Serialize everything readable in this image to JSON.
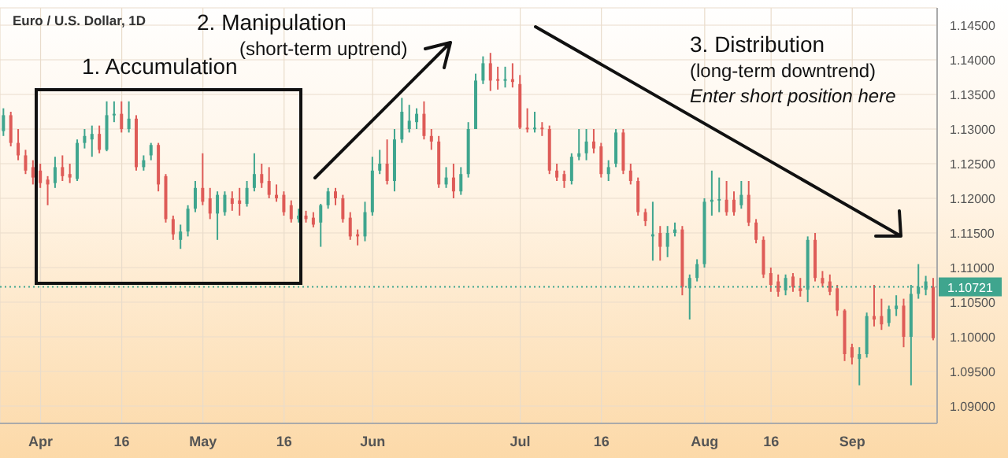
{
  "chart_data": {
    "type": "candlestick",
    "title": "Euro / U.S. Dollar, 1D",
    "categories": [
      null,
      null,
      null,
      null,
      null,
      "Apr",
      null,
      null,
      null,
      null,
      null,
      null,
      null,
      null,
      null,
      null,
      "16",
      null,
      null,
      null,
      null,
      null,
      null,
      null,
      null,
      null,
      null,
      "May",
      null,
      null,
      null,
      null,
      null,
      null,
      null,
      null,
      null,
      null,
      "16",
      null,
      null,
      null,
      null,
      null,
      null,
      null,
      null,
      null,
      null,
      null,
      "Jun",
      null,
      null,
      null,
      null,
      null,
      null,
      null,
      null,
      null,
      null,
      null,
      null,
      null,
      null,
      null,
      null,
      null,
      null,
      null,
      "Jul",
      null,
      null,
      null,
      null,
      null,
      null,
      null,
      null,
      null,
      null,
      "16",
      null,
      null,
      null,
      null,
      null,
      null,
      null,
      null,
      null,
      null,
      null,
      null,
      null,
      "Aug",
      null,
      null,
      null,
      null,
      null,
      null,
      null,
      null,
      "16",
      null,
      null,
      null,
      null,
      null,
      null,
      null,
      null,
      null,
      null,
      "Sep",
      null,
      null,
      null,
      null,
      null,
      null,
      null,
      null,
      null,
      null,
      null
    ],
    "ohlc": [
      [
        1.1297,
        1.133,
        1.129,
        1.132
      ],
      [
        1.132,
        1.1325,
        1.1275,
        1.128
      ],
      [
        1.128,
        1.13,
        1.1255,
        1.1262
      ],
      [
        1.1262,
        1.127,
        1.1235,
        1.124
      ],
      [
        1.1245,
        1.1255,
        1.122,
        1.123
      ],
      [
        1.124,
        1.125,
        1.1215,
        1.1222
      ],
      [
        1.1227,
        1.1232,
        1.119,
        1.122
      ],
      [
        1.1222,
        1.126,
        1.1215,
        1.1245
      ],
      [
        1.1245,
        1.1262,
        1.1225,
        1.1232
      ],
      [
        1.1235,
        1.125,
        1.1222,
        1.123
      ],
      [
        1.1228,
        1.1285,
        1.1225,
        1.128
      ],
      [
        1.128,
        1.13,
        1.1272,
        1.129
      ],
      [
        1.1285,
        1.1305,
        1.126,
        1.1293
      ],
      [
        1.1293,
        1.1305,
        1.1265,
        1.127
      ],
      [
        1.127,
        1.134,
        1.1268,
        1.132
      ],
      [
        1.132,
        1.134,
        1.131,
        1.1322
      ],
      [
        1.1322,
        1.134,
        1.1295,
        1.13
      ],
      [
        1.13,
        1.134,
        1.1295,
        1.1315
      ],
      [
        1.1315,
        1.132,
        1.124,
        1.1245
      ],
      [
        1.1245,
        1.1262,
        1.124,
        1.1255
      ],
      [
        1.1262,
        1.128,
        1.1255,
        1.1277
      ],
      [
        1.1277,
        1.128,
        1.121,
        1.122
      ],
      [
        1.1232,
        1.1235,
        1.1165,
        1.117
      ],
      [
        1.117,
        1.1175,
        1.114,
        1.1148
      ],
      [
        1.114,
        1.1162,
        1.1127,
        1.1152
      ],
      [
        1.1152,
        1.119,
        1.1145,
        1.1185
      ],
      [
        1.1185,
        1.1225,
        1.118,
        1.1215
      ],
      [
        1.1215,
        1.1265,
        1.119,
        1.1195
      ],
      [
        1.12,
        1.1215,
        1.117,
        1.1178
      ],
      [
        1.1178,
        1.121,
        1.114,
        1.1205
      ],
      [
        1.118,
        1.121,
        1.1175,
        1.1205
      ],
      [
        1.12,
        1.121,
        1.1182,
        1.1192
      ],
      [
        1.1197,
        1.1215,
        1.1175,
        1.1192
      ],
      [
        1.1192,
        1.1225,
        1.1188,
        1.1215
      ],
      [
        1.1215,
        1.1265,
        1.121,
        1.1235
      ],
      [
        1.1235,
        1.125,
        1.1215,
        1.1222
      ],
      [
        1.1225,
        1.1245,
        1.12,
        1.1205
      ],
      [
        1.1205,
        1.122,
        1.1195,
        1.12
      ],
      [
        1.1205,
        1.121,
        1.1175,
        1.118
      ],
      [
        1.119,
        1.1197,
        1.1165,
        1.117
      ],
      [
        1.117,
        1.1185,
        1.1165,
        1.1175
      ],
      [
        1.1175,
        1.1182,
        1.1165,
        1.117
      ],
      [
        1.1172,
        1.118,
        1.1158,
        1.1162
      ],
      [
        1.1165,
        1.1192,
        1.113,
        1.119
      ],
      [
        1.119,
        1.1215,
        1.1185,
        1.121
      ],
      [
        1.121,
        1.1215,
        1.119,
        1.12
      ],
      [
        1.12,
        1.1205,
        1.1165,
        1.117
      ],
      [
        1.1172,
        1.118,
        1.114,
        1.1145
      ],
      [
        1.1148,
        1.1155,
        1.1132,
        1.1145
      ],
      [
        1.1145,
        1.1195,
        1.1138,
        1.118
      ],
      [
        1.118,
        1.126,
        1.1175,
        1.124
      ],
      [
        1.124,
        1.127,
        1.1235,
        1.125
      ],
      [
        1.125,
        1.1285,
        1.122,
        1.1225
      ],
      [
        1.1225,
        1.13,
        1.121,
        1.1285
      ],
      [
        1.1285,
        1.1345,
        1.128,
        1.1325
      ],
      [
        1.13,
        1.1335,
        1.1295,
        1.1312
      ],
      [
        1.131,
        1.133,
        1.13,
        1.1322
      ],
      [
        1.1322,
        1.134,
        1.1285,
        1.129
      ],
      [
        1.129,
        1.13,
        1.127,
        1.1282
      ],
      [
        1.1282,
        1.129,
        1.1215,
        1.122
      ],
      [
        1.122,
        1.1245,
        1.1215,
        1.123
      ],
      [
        1.123,
        1.125,
        1.12,
        1.121
      ],
      [
        1.121,
        1.1245,
        1.1205,
        1.1235
      ],
      [
        1.1235,
        1.131,
        1.123,
        1.13
      ],
      [
        1.13,
        1.138,
        1.13,
        1.137
      ],
      [
        1.137,
        1.1405,
        1.1365,
        1.1395
      ],
      [
        1.1395,
        1.141,
        1.1355,
        1.137
      ],
      [
        1.1372,
        1.139,
        1.1357,
        1.137
      ],
      [
        1.137,
        1.139,
        1.136,
        1.1372
      ],
      [
        1.1372,
        1.1395,
        1.136,
        1.1368
      ],
      [
        1.1365,
        1.1378,
        1.13,
        1.1302
      ],
      [
        1.1302,
        1.133,
        1.1295,
        1.13
      ],
      [
        1.13,
        1.1325,
        1.1295,
        1.1302
      ],
      [
        1.1302,
        1.131,
        1.129,
        1.13
      ],
      [
        1.13,
        1.1305,
        1.1235,
        1.124
      ],
      [
        1.124,
        1.125,
        1.1225,
        1.123
      ],
      [
        1.1235,
        1.124,
        1.1215,
        1.1225
      ],
      [
        1.1225,
        1.1265,
        1.122,
        1.126
      ],
      [
        1.126,
        1.13,
        1.1255,
        1.1265
      ],
      [
        1.1265,
        1.13,
        1.1255,
        1.1282
      ],
      [
        1.1282,
        1.13,
        1.1265,
        1.1272
      ],
      [
        1.1275,
        1.128,
        1.123,
        1.1235
      ],
      [
        1.1235,
        1.1255,
        1.1225,
        1.1245
      ],
      [
        1.125,
        1.13,
        1.1245,
        1.1295
      ],
      [
        1.1295,
        1.13,
        1.1235,
        1.124
      ],
      [
        1.124,
        1.125,
        1.122,
        1.1225
      ],
      [
        1.1225,
        1.123,
        1.1175,
        1.118
      ],
      [
        1.118,
        1.1185,
        1.116,
        1.1167
      ],
      [
        1.1145,
        1.1195,
        1.111,
        1.1148
      ],
      [
        1.115,
        1.116,
        1.111,
        1.113
      ],
      [
        1.113,
        1.116,
        1.1115,
        1.115
      ],
      [
        1.115,
        1.1165,
        1.1145,
        1.1155
      ],
      [
        1.1155,
        1.116,
        1.106,
        1.1072
      ],
      [
        1.107,
        1.109,
        1.1025,
        1.1085
      ],
      [
        1.1085,
        1.1112,
        1.108,
        1.1105
      ],
      [
        1.1105,
        1.12,
        1.11,
        1.1195
      ],
      [
        1.1195,
        1.124,
        1.1175,
        1.1198
      ],
      [
        1.1198,
        1.123,
        1.118,
        1.1199
      ],
      [
        1.1198,
        1.1225,
        1.1175,
        1.118
      ],
      [
        1.1198,
        1.121,
        1.1175,
        1.118
      ],
      [
        1.119,
        1.1225,
        1.1185,
        1.1205
      ],
      [
        1.1205,
        1.1225,
        1.116,
        1.1165
      ],
      [
        1.1165,
        1.117,
        1.1135,
        1.114
      ],
      [
        1.114,
        1.1145,
        1.1085,
        1.109
      ],
      [
        1.1092,
        1.11,
        1.1065,
        1.1075
      ],
      [
        1.108,
        1.109,
        1.1058,
        1.1065
      ],
      [
        1.1067,
        1.109,
        1.106,
        1.1085
      ],
      [
        1.1087,
        1.1092,
        1.1065,
        1.1072
      ],
      [
        1.107,
        1.1085,
        1.1058,
        1.1066
      ],
      [
        1.1068,
        1.1145,
        1.105,
        1.114
      ],
      [
        1.114,
        1.115,
        1.108,
        1.1085
      ],
      [
        1.1085,
        1.1095,
        1.1072,
        1.1077
      ],
      [
        1.108,
        1.109,
        1.106,
        1.1065
      ],
      [
        1.107,
        1.1075,
        1.103,
        1.1038
      ],
      [
        1.1038,
        1.104,
        1.0965,
        1.0975
      ],
      [
        1.0985,
        1.099,
        1.096,
        1.097
      ],
      [
        1.0968,
        1.0985,
        1.093,
        1.0975
      ],
      [
        1.0975,
        1.1035,
        1.097,
        1.103
      ],
      [
        1.103,
        1.1075,
        1.1015,
        1.1025
      ],
      [
        1.103,
        1.1055,
        1.101,
        1.1018
      ],
      [
        1.102,
        1.1045,
        1.1015,
        1.104
      ],
      [
        1.104,
        1.106,
        1.103,
        1.1045
      ],
      [
        1.1045,
        1.1055,
        1.0985,
        1.1
      ],
      [
        1.1,
        1.1075,
        1.093,
        1.1062
      ],
      [
        1.1062,
        1.1105,
        1.1055,
        1.1072
      ],
      [
        1.1068,
        1.1088,
        1.106,
        1.108
      ],
      [
        1.1072,
        1.1085,
        1.0995,
        1.0998
      ]
    ],
    "colors": [
      "#3fa58e",
      "#de5b57",
      "#de5b57",
      "#de5b57",
      "#de5b57",
      "#de5b57",
      "#de5b57",
      "#3fa58e",
      "#de5b57",
      "#de5b57",
      "#3fa58e",
      "#3fa58e",
      "#3fa58e",
      "#de5b57",
      "#3fa58e",
      "#3fa58e",
      "#de5b57",
      "#3fa58e",
      "#de5b57",
      "#3fa58e",
      "#3fa58e",
      "#de5b57",
      "#de5b57",
      "#de5b57",
      "#3fa58e",
      "#3fa58e",
      "#3fa58e",
      "#de5b57",
      "#de5b57",
      "#3fa58e",
      "#3fa58e",
      "#de5b57",
      "#de5b57",
      "#3fa58e",
      "#3fa58e",
      "#de5b57",
      "#de5b57",
      "#de5b57",
      "#de5b57",
      "#de5b57",
      "#3fa58e",
      "#de5b57",
      "#de5b57",
      "#3fa58e",
      "#3fa58e",
      "#de5b57",
      "#de5b57",
      "#de5b57",
      "#de5b57",
      "#3fa58e",
      "#3fa58e",
      "#3fa58e",
      "#de5b57",
      "#3fa58e",
      "#3fa58e",
      "#3fa58e",
      "#3fa58e",
      "#de5b57",
      "#de5b57",
      "#de5b57",
      "#3fa58e",
      "#de5b57",
      "#3fa58e",
      "#3fa58e",
      "#3fa58e",
      "#3fa58e",
      "#de5b57",
      "#de5b57",
      "#3fa58e",
      "#de5b57",
      "#de5b57",
      "#de5b57",
      "#3fa58e",
      "#de5b57",
      "#de5b57",
      "#de5b57",
      "#de5b57",
      "#3fa58e",
      "#3fa58e",
      "#3fa58e",
      "#de5b57",
      "#de5b57",
      "#3fa58e",
      "#3fa58e",
      "#de5b57",
      "#de5b57",
      "#de5b57",
      "#de5b57",
      "#3fa58e",
      "#de5b57",
      "#3fa58e",
      "#3fa58e",
      "#de5b57",
      "#3fa58e",
      "#3fa58e",
      "#3fa58e",
      "#3fa58e",
      "#3fa58e",
      "#de5b57",
      "#de5b57",
      "#3fa58e",
      "#de5b57",
      "#de5b57",
      "#de5b57",
      "#de5b57",
      "#de5b57",
      "#3fa58e",
      "#de5b57",
      "#de5b57",
      "#3fa58e",
      "#de5b57",
      "#de5b57",
      "#de5b57",
      "#de5b57",
      "#de5b57",
      "#de5b57",
      "#3fa58e",
      "#3fa58e",
      "#de5b57",
      "#de5b57",
      "#3fa58e",
      "#3fa58e",
      "#de5b57",
      "#3fa58e",
      "#3fa58e",
      "#3fa58e",
      "#de5b57"
    ],
    "ylim": [
      1.0875,
      1.1475
    ],
    "yticks": [
      {
        "value": 1.09,
        "label": "1.09000"
      },
      {
        "value": 1.095,
        "label": "1.09500"
      },
      {
        "value": 1.1,
        "label": "1.10000"
      },
      {
        "value": 1.105,
        "label": "1.10500"
      },
      {
        "value": 1.11,
        "label": "1.11000"
      },
      {
        "value": 1.115,
        "label": "1.11500"
      },
      {
        "value": 1.12,
        "label": "1.12000"
      },
      {
        "value": 1.125,
        "label": "1.12500"
      },
      {
        "value": 1.13,
        "label": "1.13000"
      },
      {
        "value": 1.135,
        "label": "1.13500"
      },
      {
        "value": 1.14,
        "label": "1.14000"
      },
      {
        "value": 1.145,
        "label": "1.14500"
      }
    ],
    "ref_lines": [
      {
        "axis": "y",
        "value": 1.10721,
        "label": "1.10721",
        "color": "#3fa58e",
        "line_style": "dotted"
      }
    ],
    "annotations": [
      "1. Accumulation",
      "2. Manipulation",
      "(short-term uptrend)",
      "3. Distribution",
      "(long-term downtrend)",
      "Enter short position here"
    ],
    "grid": true
  }
}
